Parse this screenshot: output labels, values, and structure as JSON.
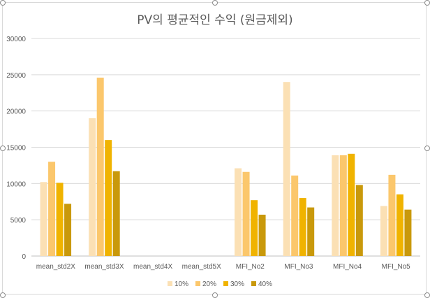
{
  "chart_data": {
    "type": "bar",
    "title": "PV의 평균적인 수익 (원금제외)",
    "categories": [
      "mean_std2X",
      "mean_std3X",
      "mean_std4X",
      "mean_std5X",
      "MFI_No2",
      "MFI_No3",
      "MFI_No4",
      "MFI_No5"
    ],
    "series": [
      {
        "name": "10%",
        "color": "#fbe0b4",
        "values": [
          10200,
          19000,
          0,
          0,
          12100,
          24000,
          13900,
          6900
        ]
      },
      {
        "name": "20%",
        "color": "#fbc76c",
        "values": [
          13000,
          24600,
          0,
          0,
          11600,
          11100,
          13900,
          11200
        ]
      },
      {
        "name": "30%",
        "color": "#f0b300",
        "values": [
          10100,
          16000,
          0,
          0,
          7700,
          8000,
          14100,
          8500
        ]
      },
      {
        "name": "40%",
        "color": "#c9990b",
        "values": [
          7200,
          11700,
          0,
          0,
          5700,
          6700,
          9800,
          6400
        ]
      }
    ],
    "ylim": [
      0,
      30000
    ],
    "yticks": [
      "0",
      "5000",
      "10000",
      "15000",
      "20000",
      "25000",
      "30000"
    ],
    "ytick_values": [
      0,
      5000,
      10000,
      15000,
      20000,
      25000,
      30000
    ],
    "grid": true,
    "legend": "bottom"
  }
}
